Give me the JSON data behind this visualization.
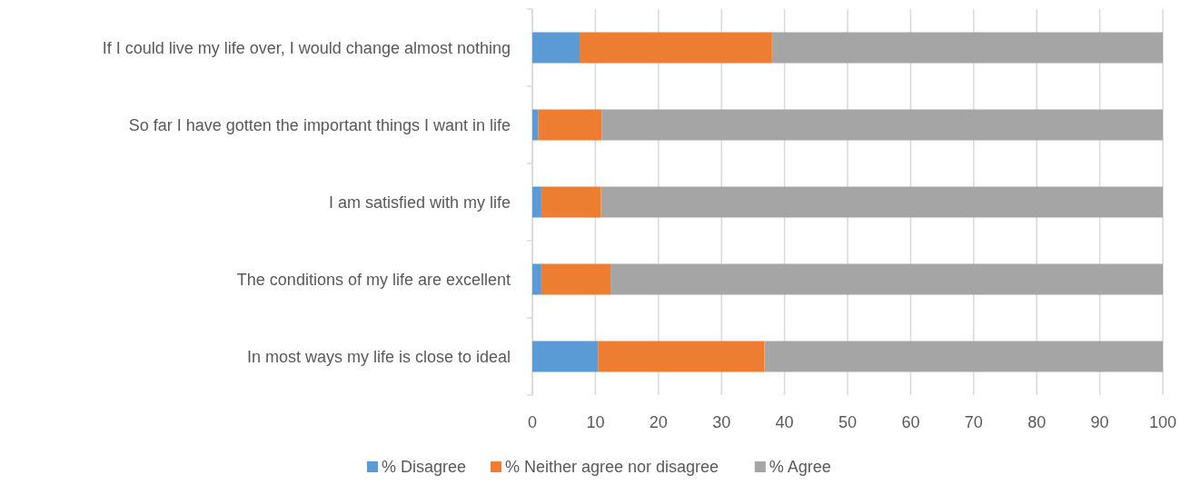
{
  "chart_data": {
    "type": "bar",
    "orientation": "horizontal",
    "stacked": true,
    "categories": [
      "If I could live my life over, I would change almost nothing",
      "So far I have gotten the important things I want in life",
      "I am satisfied with my life",
      "The conditions of my life are excellent",
      "In most ways my life is close to ideal"
    ],
    "series": [
      {
        "name": "% Disagree",
        "color": "#5b9bd5",
        "values": [
          7.5,
          0.9,
          1.3,
          1.3,
          10.4
        ]
      },
      {
        "name": "% Neither agree nor disagree",
        "color": "#ed7d31",
        "values": [
          30.4,
          10.1,
          9.6,
          11.1,
          26.4
        ]
      },
      {
        "name": "% Agree",
        "color": "#a5a5a5",
        "values": [
          62.1,
          89.0,
          89.1,
          87.6,
          63.2
        ]
      }
    ],
    "xlim": [
      0,
      100
    ],
    "xticks": [
      0,
      10,
      20,
      30,
      40,
      50,
      60,
      70,
      80,
      90,
      100
    ],
    "grid": "x",
    "legend": "bottom"
  }
}
